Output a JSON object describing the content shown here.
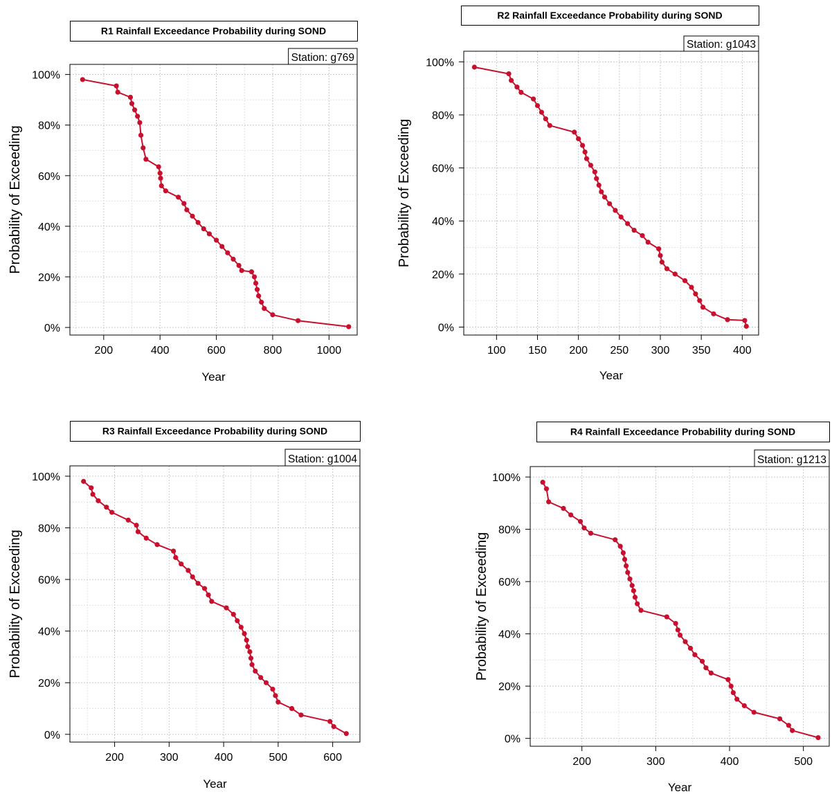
{
  "chart_data": [
    {
      "type": "line",
      "title": "R1 Rainfall Exceedance Probability during SOND",
      "annotation": "Station: g769",
      "xlabel": "Year",
      "ylabel": "Probability of Exceeding",
      "xlim": [
        80,
        1100
      ],
      "ylim": [
        -0.03,
        1.04
      ],
      "xticks": [
        200,
        400,
        600,
        800,
        1000
      ],
      "yticks": [
        0,
        0.2,
        0.4,
        0.6,
        0.8,
        1.0
      ],
      "ytick_labels": [
        "0%",
        "20%",
        "40%",
        "60%",
        "80%",
        "100%"
      ],
      "grid": true,
      "color": "#c8102e",
      "series": [
        {
          "x": [
            125,
            245,
            250,
            295,
            300,
            310,
            320,
            328,
            332,
            340,
            350,
            395,
            400,
            402,
            405,
            420,
            465,
            485,
            495,
            515,
            535,
            555,
            575,
            600,
            620,
            640,
            660,
            680,
            690,
            725,
            735,
            740,
            745,
            750,
            760,
            770,
            800,
            890,
            1070
          ],
          "y": [
            0.98,
            0.955,
            0.93,
            0.91,
            0.885,
            0.86,
            0.835,
            0.81,
            0.76,
            0.71,
            0.665,
            0.635,
            0.61,
            0.59,
            0.56,
            0.54,
            0.515,
            0.49,
            0.465,
            0.44,
            0.415,
            0.39,
            0.37,
            0.345,
            0.32,
            0.295,
            0.27,
            0.245,
            0.225,
            0.22,
            0.2,
            0.175,
            0.15,
            0.125,
            0.1,
            0.075,
            0.05,
            0.027,
            0.003
          ]
        }
      ]
    },
    {
      "type": "line",
      "title": "R2 Rainfall Exceedance Probability during SOND",
      "annotation": "Station: g1043",
      "xlabel": "Year",
      "ylabel": "Probability of Exceeding",
      "xlim": [
        60,
        420
      ],
      "ylim": [
        -0.03,
        1.04
      ],
      "xticks": [
        100,
        150,
        200,
        250,
        300,
        350,
        400
      ],
      "yticks": [
        0,
        0.2,
        0.4,
        0.6,
        0.8,
        1.0
      ],
      "ytick_labels": [
        "0%",
        "20%",
        "40%",
        "60%",
        "80%",
        "100%"
      ],
      "grid": true,
      "color": "#c8102e",
      "series": [
        {
          "x": [
            73,
            115,
            118,
            125,
            130,
            145,
            150,
            155,
            160,
            165,
            195,
            200,
            205,
            208,
            210,
            215,
            220,
            222,
            225,
            228,
            232,
            238,
            245,
            252,
            260,
            268,
            278,
            285,
            298,
            300,
            302,
            308,
            318,
            330,
            338,
            343,
            348,
            352,
            365,
            382,
            403,
            405
          ],
          "y": [
            0.98,
            0.955,
            0.93,
            0.905,
            0.885,
            0.86,
            0.835,
            0.81,
            0.785,
            0.76,
            0.735,
            0.71,
            0.685,
            0.66,
            0.635,
            0.61,
            0.585,
            0.56,
            0.535,
            0.51,
            0.49,
            0.465,
            0.44,
            0.415,
            0.39,
            0.365,
            0.345,
            0.32,
            0.295,
            0.27,
            0.245,
            0.22,
            0.2,
            0.175,
            0.15,
            0.125,
            0.1,
            0.075,
            0.05,
            0.028,
            0.025,
            0.003
          ]
        }
      ]
    },
    {
      "type": "line",
      "title": "R3 Rainfall Exceedance Probability during SOND",
      "annotation": "Station: g1004",
      "xlabel": "Year",
      "ylabel": "Probability of Exceeding",
      "xlim": [
        118,
        650
      ],
      "ylim": [
        -0.03,
        1.04
      ],
      "xticks": [
        200,
        300,
        400,
        500,
        600
      ],
      "yticks": [
        0,
        0.2,
        0.4,
        0.6,
        0.8,
        1.0
      ],
      "ytick_labels": [
        "0%",
        "20%",
        "40%",
        "60%",
        "80%",
        "100%"
      ],
      "grid": true,
      "color": "#c8102e",
      "series": [
        {
          "x": [
            143,
            157,
            160,
            170,
            185,
            195,
            225,
            240,
            243,
            258,
            278,
            308,
            312,
            322,
            335,
            343,
            353,
            365,
            372,
            378,
            405,
            418,
            425,
            432,
            438,
            442,
            444,
            448,
            450,
            452,
            458,
            468,
            478,
            490,
            495,
            500,
            525,
            542,
            595,
            602,
            625
          ],
          "y": [
            0.98,
            0.955,
            0.93,
            0.905,
            0.88,
            0.86,
            0.83,
            0.81,
            0.785,
            0.76,
            0.735,
            0.71,
            0.685,
            0.66,
            0.635,
            0.61,
            0.585,
            0.565,
            0.54,
            0.515,
            0.49,
            0.465,
            0.44,
            0.415,
            0.39,
            0.365,
            0.34,
            0.32,
            0.295,
            0.27,
            0.245,
            0.22,
            0.2,
            0.175,
            0.15,
            0.125,
            0.1,
            0.075,
            0.05,
            0.03,
            0.003
          ]
        }
      ]
    },
    {
      "type": "line",
      "title": "R4 Rainfall Exceedance Probability during SOND",
      "annotation": "Station: g1213",
      "xlabel": "Year",
      "ylabel": "Probability of Exceeding",
      "xlim": [
        130,
        535
      ],
      "ylim": [
        -0.03,
        1.04
      ],
      "xticks": [
        200,
        300,
        400,
        500
      ],
      "yticks": [
        0,
        0.2,
        0.4,
        0.6,
        0.8,
        1.0
      ],
      "ytick_labels": [
        "0%",
        "20%",
        "40%",
        "60%",
        "80%",
        "100%"
      ],
      "grid": true,
      "color": "#c8102e",
      "series": [
        {
          "x": [
            147,
            152,
            155,
            175,
            185,
            198,
            203,
            212,
            245,
            252,
            256,
            258,
            260,
            262,
            265,
            268,
            270,
            272,
            275,
            280,
            315,
            327,
            330,
            333,
            340,
            347,
            353,
            363,
            368,
            375,
            398,
            402,
            405,
            410,
            420,
            433,
            468,
            480,
            485,
            520
          ],
          "y": [
            0.98,
            0.955,
            0.905,
            0.88,
            0.855,
            0.83,
            0.805,
            0.785,
            0.76,
            0.735,
            0.71,
            0.685,
            0.66,
            0.635,
            0.61,
            0.585,
            0.565,
            0.54,
            0.515,
            0.49,
            0.465,
            0.44,
            0.415,
            0.395,
            0.37,
            0.345,
            0.32,
            0.295,
            0.27,
            0.25,
            0.225,
            0.2,
            0.175,
            0.15,
            0.125,
            0.1,
            0.075,
            0.05,
            0.03,
            0.003
          ]
        }
      ]
    }
  ]
}
